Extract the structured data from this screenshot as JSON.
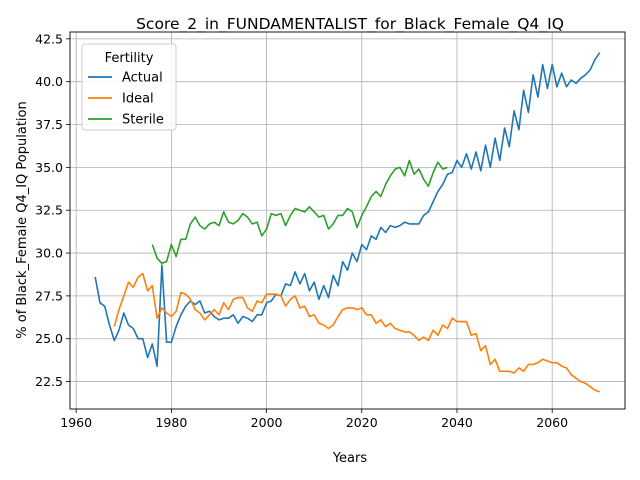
{
  "chart_data": {
    "type": "line",
    "title": "Score_2_in_FUNDAMENTALIST_for_Black_Female_Q4_IQ",
    "xlabel": "Years",
    "ylabel": "% of Black_Female Q4_IQ Population",
    "xlim": [
      1958.7,
      2075.3
    ],
    "ylim": [
      20.9,
      42.9
    ],
    "xticks": [
      1960,
      1980,
      2000,
      2020,
      2040,
      2060
    ],
    "yticks": [
      22.5,
      25.0,
      27.5,
      30.0,
      32.5,
      35.0,
      37.5,
      40.0,
      42.5
    ],
    "xtick_labels": [
      "1960",
      "1980",
      "2000",
      "2020",
      "2040",
      "2060"
    ],
    "ytick_labels": [
      "22.5",
      "25.0",
      "27.5",
      "30.0",
      "32.5",
      "35.0",
      "37.5",
      "40.0",
      "42.5"
    ],
    "grid": true,
    "legend": {
      "title": "Fertility",
      "placement": "top-left"
    },
    "series": [
      {
        "name": "Actual",
        "color": "#1f77b4",
        "x": [
          1964,
          1965,
          1966,
          1967,
          1968,
          1969,
          1970,
          1971,
          1972,
          1973,
          1974,
          1975,
          1976,
          1977,
          1978,
          1979,
          1980,
          1981,
          1982,
          1983,
          1984,
          1985,
          1986,
          1987,
          1988,
          1989,
          1990,
          1991,
          1992,
          1993,
          1994,
          1995,
          1996,
          1997,
          1998,
          1999,
          2000,
          2001,
          2002,
          2003,
          2004,
          2005,
          2006,
          2007,
          2008,
          2009,
          2010,
          2011,
          2012,
          2013,
          2014,
          2015,
          2016,
          2017,
          2018,
          2019,
          2020,
          2021,
          2022,
          2023,
          2024,
          2025,
          2026,
          2027,
          2028,
          2029,
          2030,
          2031,
          2032,
          2033,
          2034,
          2035,
          2036,
          2037,
          2038,
          2039,
          2040,
          2041,
          2042,
          2043,
          2044,
          2045,
          2046,
          2047,
          2048,
          2049,
          2050,
          2051,
          2052,
          2053,
          2054,
          2055,
          2056,
          2057,
          2058,
          2059,
          2060,
          2061,
          2062,
          2063,
          2064,
          2065,
          2066,
          2067,
          2068,
          2069,
          2070
        ],
        "y": [
          28.6,
          27.1,
          26.9,
          25.8,
          24.9,
          25.5,
          26.5,
          25.8,
          25.6,
          25.0,
          25.0,
          23.9,
          24.7,
          23.4,
          29.3,
          24.8,
          24.8,
          25.7,
          26.4,
          26.9,
          27.2,
          27.0,
          27.2,
          26.5,
          26.6,
          26.3,
          26.1,
          26.2,
          26.2,
          26.4,
          25.9,
          26.3,
          26.2,
          26.0,
          26.4,
          26.4,
          27.1,
          27.2,
          27.6,
          27.5,
          28.2,
          28.1,
          28.9,
          28.2,
          28.8,
          27.8,
          28.3,
          27.3,
          28.1,
          27.4,
          28.7,
          28.1,
          29.5,
          29.0,
          30.0,
          29.5,
          30.5,
          30.2,
          31.0,
          30.8,
          31.5,
          31.2,
          31.6,
          31.5,
          31.6,
          31.8,
          31.7,
          31.7,
          31.7,
          32.2,
          32.4,
          33.0,
          33.6,
          34.0,
          34.6,
          34.7,
          35.4,
          35.0,
          35.8,
          34.9,
          35.9,
          34.8,
          36.3,
          35.0,
          36.7,
          35.4,
          37.3,
          36.2,
          38.3,
          37.2,
          39.5,
          38.2,
          40.4,
          39.1,
          41.0,
          39.6,
          41.0,
          39.7,
          40.5,
          39.7,
          40.1,
          39.9,
          40.2,
          40.4,
          40.7,
          41.3,
          41.7
        ]
      },
      {
        "name": "Ideal",
        "color": "#ff7f0e",
        "x": [
          1968,
          1969,
          1970,
          1971,
          1972,
          1973,
          1974,
          1975,
          1976,
          1977,
          1978,
          1979,
          1980,
          1981,
          1982,
          1983,
          1984,
          1985,
          1986,
          1987,
          1988,
          1989,
          1990,
          1991,
          1992,
          1993,
          1994,
          1995,
          1996,
          1997,
          1998,
          1999,
          2000,
          2001,
          2002,
          2003,
          2004,
          2005,
          2006,
          2007,
          2008,
          2009,
          2010,
          2011,
          2012,
          2013,
          2014,
          2015,
          2016,
          2017,
          2018,
          2019,
          2020,
          2021,
          2022,
          2023,
          2024,
          2025,
          2026,
          2027,
          2028,
          2029,
          2030,
          2031,
          2032,
          2033,
          2034,
          2035,
          2036,
          2037,
          2038,
          2039,
          2040,
          2041,
          2042,
          2043,
          2044,
          2045,
          2046,
          2047,
          2048,
          2049,
          2050,
          2051,
          2052,
          2053,
          2054,
          2055,
          2056,
          2057,
          2058,
          2059,
          2060,
          2061,
          2062,
          2063,
          2064,
          2065,
          2066,
          2067,
          2068,
          2069,
          2070
        ],
        "y": [
          25.7,
          26.7,
          27.5,
          28.3,
          28.0,
          28.6,
          28.8,
          27.8,
          28.1,
          26.2,
          26.8,
          26.5,
          26.3,
          26.6,
          27.7,
          27.6,
          27.3,
          26.7,
          26.5,
          26.1,
          26.4,
          26.7,
          26.4,
          27.1,
          26.7,
          27.3,
          27.4,
          27.4,
          26.8,
          26.6,
          27.2,
          27.1,
          27.6,
          27.6,
          27.6,
          27.5,
          26.9,
          27.3,
          27.5,
          26.8,
          26.9,
          26.3,
          26.4,
          25.9,
          25.8,
          25.6,
          25.8,
          26.3,
          26.7,
          26.8,
          26.8,
          26.7,
          26.8,
          26.4,
          26.4,
          25.9,
          26.1,
          25.7,
          25.9,
          25.6,
          25.5,
          25.4,
          25.4,
          25.2,
          24.9,
          25.1,
          24.9,
          25.5,
          25.2,
          25.8,
          25.6,
          26.2,
          26.0,
          26.0,
          26.0,
          25.2,
          25.3,
          24.3,
          24.6,
          23.5,
          23.8,
          23.1,
          23.1,
          23.1,
          23.0,
          23.3,
          23.1,
          23.5,
          23.5,
          23.6,
          23.8,
          23.7,
          23.6,
          23.6,
          23.4,
          23.3,
          22.9,
          22.7,
          22.5,
          22.4,
          22.2,
          22.0,
          21.9
        ]
      },
      {
        "name": "Sterile",
        "color": "#2ca02c",
        "x": [
          1976,
          1977,
          1978,
          1979,
          1980,
          1981,
          1982,
          1983,
          1984,
          1985,
          1986,
          1987,
          1988,
          1989,
          1990,
          1991,
          1992,
          1993,
          1994,
          1995,
          1996,
          1997,
          1998,
          1999,
          2000,
          2001,
          2002,
          2003,
          2004,
          2005,
          2006,
          2007,
          2008,
          2009,
          2010,
          2011,
          2012,
          2013,
          2014,
          2015,
          2016,
          2017,
          2018,
          2019,
          2020,
          2021,
          2022,
          2023,
          2024,
          2025,
          2026,
          2027,
          2028,
          2029,
          2030,
          2031,
          2032,
          2033,
          2034,
          2035,
          2036,
          2037,
          2038
        ],
        "y": [
          30.5,
          29.7,
          29.4,
          29.5,
          30.5,
          29.8,
          30.8,
          30.8,
          31.7,
          32.1,
          31.6,
          31.4,
          31.7,
          31.8,
          31.6,
          32.4,
          31.8,
          31.7,
          31.9,
          32.3,
          32.1,
          31.7,
          31.8,
          31.0,
          31.4,
          32.3,
          32.2,
          32.3,
          31.6,
          32.2,
          32.6,
          32.5,
          32.4,
          32.7,
          32.4,
          32.1,
          32.2,
          31.4,
          31.7,
          32.2,
          32.2,
          32.6,
          32.4,
          31.5,
          32.2,
          32.7,
          33.3,
          33.6,
          33.3,
          34.0,
          34.5,
          34.9,
          35.0,
          34.5,
          35.4,
          34.6,
          34.9,
          34.3,
          33.9,
          34.7,
          35.3,
          34.9,
          35.0
        ]
      }
    ]
  }
}
